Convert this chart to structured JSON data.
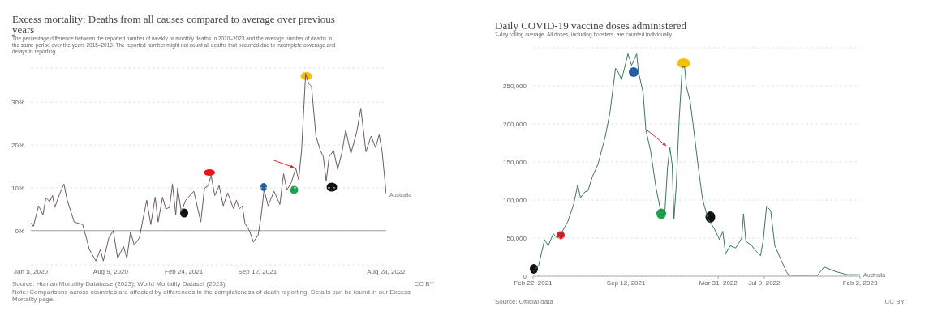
{
  "chart_data": [
    {
      "type": "line",
      "title": "Excess mortality: Deaths from all causes compared to average over previous years",
      "subtitle": "The percentage difference between the reported number of weekly or monthly deaths in 2020–2023 and the average number of deaths in the same period over the years 2015–2019. The reported number might not count all deaths that occurred due to incomplete coverage and delays in reporting.",
      "series": [
        {
          "name": "Australia",
          "color": "#6e5a5e",
          "x": [
            "2020-01-05",
            "2020-01-12",
            "2020-01-26",
            "2020-02-07",
            "2020-02-15",
            "2020-02-25",
            "2020-03-04",
            "2020-03-10",
            "2020-03-23",
            "2020-04-04",
            "2020-04-13",
            "2020-05-02",
            "2020-05-25",
            "2020-06-06",
            "2020-06-12",
            "2020-06-30",
            "2020-07-12",
            "2020-07-20",
            "2020-08-04",
            "2020-08-16",
            "2020-08-28",
            "2020-09-13",
            "2020-09-22",
            "2020-10-02",
            "2020-10-12",
            "2020-10-26",
            "2020-11-15",
            "2020-11-26",
            "2020-12-08",
            "2020-12-16",
            "2020-12-28",
            "2021-01-06",
            "2021-01-16",
            "2021-01-24",
            "2021-02-02",
            "2021-02-07",
            "2021-02-17",
            "2021-03-01",
            "2021-03-23",
            "2021-04-01",
            "2021-04-11",
            "2021-04-21",
            "2021-05-01",
            "2021-05-09",
            "2021-05-19",
            "2021-05-31",
            "2021-06-11",
            "2021-06-23",
            "2021-07-09",
            "2021-07-17",
            "2021-07-25",
            "2021-08-02",
            "2021-08-09",
            "2021-08-21",
            "2021-09-01",
            "2021-09-14",
            "2021-09-22",
            "2021-09-30",
            "2021-10-11",
            "2021-10-27",
            "2021-11-12",
            "2021-11-22",
            "2021-12-01",
            "2021-12-13",
            "2021-12-25",
            "2022-01-02",
            "2022-01-10",
            "2022-01-21",
            "2022-01-29",
            "2022-02-06",
            "2022-02-18",
            "2022-03-02",
            "2022-03-10",
            "2022-03-18",
            "2022-03-26",
            "2022-04-07",
            "2022-04-18",
            "2022-04-29",
            "2022-05-10",
            "2022-05-24",
            "2022-06-09",
            "2022-06-20",
            "2022-07-04",
            "2022-07-18",
            "2022-07-30",
            "2022-08-09",
            "2022-08-17",
            "2022-08-28"
          ],
          "values": [
            1.8,
            1.0,
            5.8,
            3.7,
            7.7,
            6.8,
            8.2,
            5.4,
            8.5,
            10.9,
            7.1,
            2.0,
            1.4,
            -2.4,
            -4.4,
            -7.1,
            -4.4,
            -7.1,
            -1.7,
            0,
            -6.5,
            -3.7,
            -6.5,
            -0.3,
            -3.4,
            -1.7,
            7.1,
            1.4,
            7.8,
            2.0,
            7.8,
            5.1,
            5.4,
            10.9,
            3.7,
            9.9,
            4.4,
            7.1,
            9.2,
            5.8,
            2.0,
            9.9,
            10.5,
            12.9,
            8.2,
            10.5,
            5.8,
            8.8,
            5.1,
            7.1,
            5.1,
            5.8,
            1.7,
            0,
            -2.7,
            -1.0,
            3.4,
            9.5,
            5.8,
            9.2,
            6.1,
            13.3,
            9.5,
            11.2,
            14.6,
            11.9,
            18.7,
            36.7,
            34.4,
            33.7,
            22.1,
            18.7,
            17.3,
            11.6,
            17.3,
            18.7,
            14.3,
            18.0,
            23.5,
            18.0,
            23.1,
            28.6,
            18.4,
            22.1,
            19.4,
            22.4,
            18.4,
            8.5
          ]
        }
      ],
      "xlim": [
        "2020-01-05",
        "2022-08-28"
      ],
      "xticks": [
        {
          "value": "2020-01-05",
          "label": "Jan 5, 2020"
        },
        {
          "value": "2020-08-09",
          "label": "Aug 9, 2020"
        },
        {
          "value": "2021-02-24",
          "label": "Feb 24, 2021"
        },
        {
          "value": "2021-09-12",
          "label": "Sep 12, 2021"
        },
        {
          "value": "2022-08-28",
          "label": "Aug 28, 2022"
        }
      ],
      "ylim": [
        -8,
        38
      ],
      "yticks": [
        {
          "value": 0,
          "label": "0%"
        },
        {
          "value": 10,
          "label": "10%"
        },
        {
          "value": 20,
          "label": "20%"
        },
        {
          "value": 30,
          "label": "30%"
        }
      ],
      "grid": "y",
      "marker": "none",
      "ref_lines": [
        {
          "axis": "y",
          "value": 0,
          "color": "#a0a0a0"
        }
      ],
      "annotations": [
        "Source: Human Mortality Database (2023), World Mortality Dataset (2023)",
        "CC BY",
        "Note: Comparisons across countries are affected by differences in the completeness of death reporting. Details can be found in our Excess Mortality page."
      ]
    },
    {
      "type": "line",
      "title": "Daily COVID-19 vaccine doses administered",
      "subtitle": "7-day rolling average. All doses, including boosters, are counted individually.",
      "series": [
        {
          "name": "Australia",
          "color": "#3f7563",
          "x": [
            "2021-02-22",
            "2021-03-06",
            "2021-03-19",
            "2021-03-27",
            "2021-04-07",
            "2021-04-15",
            "2021-04-22",
            "2021-05-08",
            "2021-05-21",
            "2021-05-30",
            "2021-06-05",
            "2021-06-15",
            "2021-06-21",
            "2021-07-01",
            "2021-07-13",
            "2021-07-29",
            "2021-08-08",
            "2021-08-20",
            "2021-08-26",
            "2021-09-02",
            "2021-09-08",
            "2021-09-16",
            "2021-09-24",
            "2021-10-05",
            "2021-10-09",
            "2021-10-19",
            "2021-10-25",
            "2021-11-04",
            "2021-11-16",
            "2021-11-26",
            "2021-12-05",
            "2021-12-11",
            "2021-12-16",
            "2021-12-21",
            "2021-12-25",
            "2021-12-30",
            "2022-01-05",
            "2022-01-12",
            "2022-01-17",
            "2022-01-21",
            "2022-01-29",
            "2022-02-06",
            "2022-02-15",
            "2022-02-25",
            "2022-03-09",
            "2022-03-22",
            "2022-04-03",
            "2022-04-10",
            "2022-04-16",
            "2022-04-26",
            "2022-05-08",
            "2022-05-21",
            "2022-05-25",
            "2022-05-30",
            "2022-06-12",
            "2022-06-21",
            "2022-07-01",
            "2022-07-07",
            "2022-07-14",
            "2022-07-23",
            "2022-08-01",
            "2022-08-14",
            "2022-08-26",
            "2022-09-02",
            "2022-10-31",
            "2022-11-16",
            "2022-12-11",
            "2023-01-05",
            "2023-02-02"
          ],
          "values": [
            6000,
            14000,
            48000,
            40000,
            56000,
            50000,
            54000,
            71000,
            94000,
            120000,
            103000,
            111000,
            112000,
            131000,
            147000,
            184000,
            215000,
            273000,
            268000,
            258000,
            272000,
            292000,
            277000,
            292000,
            268000,
            241000,
            192000,
            165000,
            116000,
            86000,
            82000,
            143000,
            169000,
            147000,
            75000,
            120000,
            203000,
            275000,
            275000,
            249000,
            230000,
            192000,
            147000,
            101000,
            75000,
            63000,
            48000,
            59000,
            29000,
            40000,
            37000,
            50000,
            82000,
            46000,
            40000,
            33000,
            27000,
            48000,
            92000,
            86000,
            40000,
            22000,
            6000,
            0,
            0,
            12000,
            6000,
            2000,
            2000
          ]
        }
      ],
      "xlim": [
        "2021-02-22",
        "2023-02-02"
      ],
      "xticks": [
        {
          "value": "2021-02-22",
          "label": "Feb 22, 2021"
        },
        {
          "value": "2021-09-12",
          "label": "Sep 12, 2021"
        },
        {
          "value": "2022-03-31",
          "label": "Mar 31, 2022"
        },
        {
          "value": "2022-07-09",
          "label": "Jul 9, 2022"
        },
        {
          "value": "2023-02-02",
          "label": "Feb 2, 2023"
        }
      ],
      "ylim": [
        0,
        300000
      ],
      "yticks": [
        0,
        {
          "value": 50000,
          "label": "50,000"
        },
        {
          "value": 100000,
          "label": "100,000"
        },
        {
          "value": 150000,
          "label": "150,000"
        },
        {
          "value": 200000,
          "label": "200,000"
        },
        {
          "value": 250000,
          "label": "250,000"
        }
      ],
      "grid": "y",
      "marker": "none",
      "annotations": [
        "Source: Official data",
        "CC BY"
      ]
    }
  ]
}
